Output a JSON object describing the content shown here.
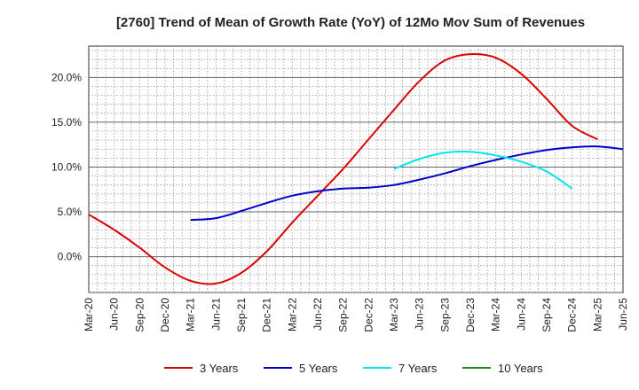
{
  "chart_data": {
    "type": "line",
    "title": "[2760]  Trend of Mean of Growth Rate (YoY) of 12Mo Mov Sum of Revenues",
    "xlabel": "",
    "ylabel": "",
    "ylim": [
      -4.0,
      23.5
    ],
    "y_ticks": [
      0.0,
      5.0,
      10.0,
      15.0,
      20.0
    ],
    "y_tick_labels": [
      "0.0%",
      "5.0%",
      "10.0%",
      "15.0%",
      "20.0%"
    ],
    "x_tick_labels": [
      "Mar-20",
      "Jun-20",
      "Sep-20",
      "Dec-20",
      "Mar-21",
      "Jun-21",
      "Sep-21",
      "Dec-21",
      "Mar-22",
      "Jun-22",
      "Sep-22",
      "Dec-22",
      "Mar-23",
      "Jun-23",
      "Sep-23",
      "Dec-23",
      "Mar-24",
      "Jun-24",
      "Sep-24",
      "Dec-24",
      "Mar-25",
      "Jun-25"
    ],
    "grid": true,
    "legend_position": "bottom",
    "series": [
      {
        "name": "3 Years",
        "color": "#dd0000",
        "start_index": 0,
        "values": [
          4.7,
          3.0,
          1.0,
          -1.2,
          -2.7,
          -3.0,
          -1.8,
          0.6,
          3.8,
          6.8,
          9.8,
          13.1,
          16.4,
          19.6,
          21.9,
          22.6,
          22.2,
          20.4,
          17.6,
          14.6,
          13.1
        ]
      },
      {
        "name": "5 Years",
        "color": "#0000cc",
        "start_index": 4,
        "values": [
          4.1,
          4.3,
          5.1,
          6.0,
          6.8,
          7.3,
          7.6,
          7.7,
          8.0,
          8.6,
          9.3,
          10.1,
          10.8,
          11.4,
          11.9,
          12.2,
          12.3,
          12.0
        ]
      },
      {
        "name": "7 Years",
        "color": "#00e5ee",
        "start_index": 12,
        "values": [
          9.8,
          10.9,
          11.6,
          11.7,
          11.3,
          10.6,
          9.5,
          7.6
        ]
      },
      {
        "name": "10 Years",
        "color": "#228b22",
        "start_index": 0,
        "values": []
      }
    ]
  }
}
